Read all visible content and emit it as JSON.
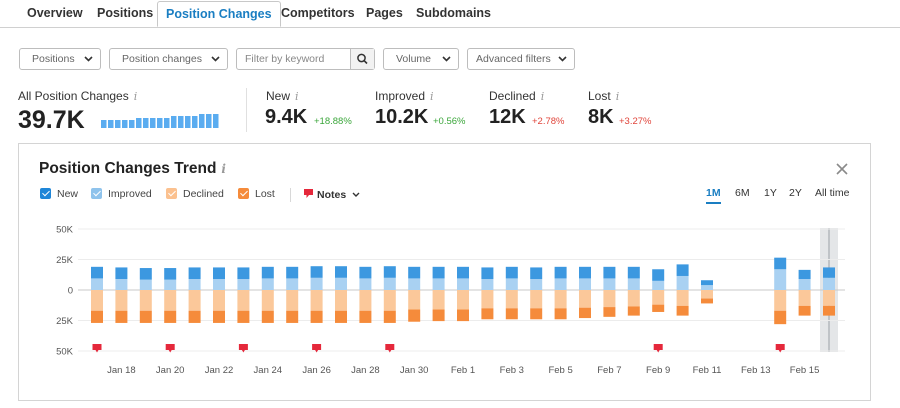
{
  "tabs": [
    {
      "label": "Overview",
      "active": false
    },
    {
      "label": "Positions",
      "active": false
    },
    {
      "label": "Position Changes",
      "active": true
    },
    {
      "label": "Competitors",
      "active": false
    },
    {
      "label": "Pages",
      "active": false
    },
    {
      "label": "Subdomains",
      "active": false
    }
  ],
  "filters": {
    "positions_label": "Positions",
    "position_changes_label": "Position changes",
    "keyword_placeholder": "Filter by keyword",
    "volume_label": "Volume",
    "advanced_label": "Advanced filters"
  },
  "summary": {
    "all": {
      "label": "All Position Changes",
      "value": "39.7K",
      "sparkline": [
        4,
        4,
        4,
        4,
        4,
        5,
        5,
        5,
        5,
        5,
        6,
        6,
        6,
        6,
        7,
        7,
        7
      ]
    },
    "new": {
      "label": "New",
      "value": "9.4K",
      "delta": "+18.88%"
    },
    "improved": {
      "label": "Improved",
      "value": "10.2K",
      "delta": "+0.56%"
    },
    "declined": {
      "label": "Declined",
      "value": "12K",
      "delta": "+2.78%"
    },
    "lost": {
      "label": "Lost",
      "value": "8K",
      "delta": "+3.27%"
    }
  },
  "trend": {
    "title": "Position Changes Trend",
    "legend": {
      "new": "New",
      "improved": "Improved",
      "declined": "Declined",
      "lost": "Lost",
      "notes": "Notes"
    },
    "ranges": [
      "1M",
      "6M",
      "1Y",
      "2Y",
      "All time"
    ],
    "active_range": "1M"
  },
  "colors": {
    "accent": "#1a7ec2",
    "new": "#3c98e0",
    "improved": "#a9d1f2",
    "declined": "#fbc89a",
    "lost": "#f58b3b",
    "note": "#e5283b",
    "positive": "#3aa63a",
    "negative": "#e0443a"
  },
  "chart_data": {
    "type": "bar",
    "stacked": true,
    "y_ticks": [
      "50K",
      "25K",
      "0",
      "25K",
      "50K"
    ],
    "ylim": [
      -50000,
      50000
    ],
    "x_tick_labels": [
      "Jan 18",
      "Jan 20",
      "Jan 22",
      "Jan 24",
      "Jan 26",
      "Jan 28",
      "Jan 30",
      "Feb 1",
      "Feb 3",
      "Feb 5",
      "Feb 7",
      "Feb 9",
      "Feb 11",
      "Feb 13",
      "Feb 15"
    ],
    "days": [
      "Jan 17",
      "Jan 18",
      "Jan 19",
      "Jan 20",
      "Jan 21",
      "Jan 22",
      "Jan 23",
      "Jan 24",
      "Jan 25",
      "Jan 26",
      "Jan 27",
      "Jan 28",
      "Jan 29",
      "Jan 30",
      "Jan 31",
      "Feb 1",
      "Feb 2",
      "Feb 3",
      "Feb 4",
      "Feb 5",
      "Feb 6",
      "Feb 7",
      "Feb 8",
      "Feb 9",
      "Feb 10",
      "Feb 11",
      "Feb 12",
      "Feb 13",
      "Feb 14",
      "Feb 15",
      "Feb 16"
    ],
    "series": [
      {
        "name": "New",
        "values": [
          9500,
          9500,
          9500,
          9500,
          9500,
          9500,
          9500,
          9500,
          9500,
          9500,
          9500,
          9500,
          9500,
          9500,
          9500,
          9500,
          9500,
          9500,
          9500,
          9500,
          9500,
          9500,
          9500,
          9500,
          9500,
          4000,
          null,
          null,
          9500,
          7500,
          8500
        ]
      },
      {
        "name": "Improved",
        "values": [
          9500,
          9000,
          8500,
          8500,
          9000,
          9000,
          9000,
          9500,
          9500,
          10000,
          10000,
          9500,
          10000,
          9500,
          9500,
          9500,
          9000,
          9500,
          9000,
          9500,
          9500,
          9500,
          9500,
          7500,
          11500,
          4000,
          null,
          null,
          17000,
          9000,
          10000
        ]
      },
      {
        "name": "Declined",
        "values": [
          -17000,
          -17000,
          -17000,
          -17000,
          -17000,
          -17000,
          -17000,
          -17000,
          -17000,
          -17000,
          -17000,
          -17000,
          -17000,
          -16000,
          -16000,
          -16000,
          -15000,
          -15000,
          -15000,
          -15000,
          -14500,
          -14000,
          -13500,
          -12000,
          -13000,
          -7000,
          null,
          null,
          -17000,
          -13000,
          -13000
        ]
      },
      {
        "name": "Lost",
        "values": [
          -10000,
          -10000,
          -10000,
          -10000,
          -10000,
          -10000,
          -10000,
          -10000,
          -10000,
          -10000,
          -10000,
          -10000,
          -10000,
          -10000,
          -9500,
          -9500,
          -9000,
          -9000,
          -9000,
          -9000,
          -8500,
          -8000,
          -7500,
          -6000,
          -8000,
          -4000,
          null,
          null,
          -11000,
          -8000,
          -8000
        ]
      }
    ],
    "notes_at": [
      "Jan 17",
      "Jan 20",
      "Jan 23",
      "Jan 26",
      "Jan 29",
      "Feb 9",
      "Feb 14"
    ],
    "highlighted_day": "Feb 16"
  }
}
